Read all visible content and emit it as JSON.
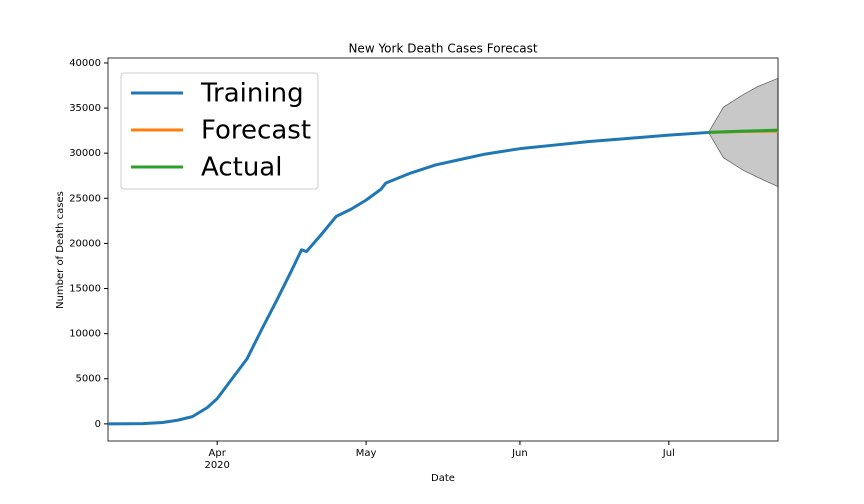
{
  "chart_data": {
    "type": "line",
    "title": "New York Death Cases Forecast",
    "xlabel": "Date",
    "ylabel": "Number of Death cases",
    "xlim": [
      "2020-03-10",
      "2020-07-23"
    ],
    "ylim": [
      -1900,
      40550
    ],
    "yticks": [
      0,
      5000,
      10000,
      15000,
      20000,
      25000,
      30000,
      35000,
      40000
    ],
    "xticks": [
      {
        "value": "2020-04-01",
        "label": "Apr",
        "sublabel": "2020"
      },
      {
        "value": "2020-05-01",
        "label": "May"
      },
      {
        "value": "2020-06-01",
        "label": "Jun"
      },
      {
        "value": "2020-07-01",
        "label": "Jul"
      }
    ],
    "grid": false,
    "legend": "upper left",
    "series": [
      {
        "name": "Training",
        "color": "#1f77b4",
        "x": [
          "2020-03-10",
          "2020-03-17",
          "2020-03-21",
          "2020-03-24",
          "2020-03-27",
          "2020-03-30",
          "2020-04-01",
          "2020-04-04",
          "2020-04-07",
          "2020-04-10",
          "2020-04-13",
          "2020-04-16",
          "2020-04-18",
          "2020-04-19",
          "2020-04-22",
          "2020-04-25",
          "2020-04-28",
          "2020-05-01",
          "2020-05-04",
          "2020-05-05",
          "2020-05-10",
          "2020-05-15",
          "2020-05-20",
          "2020-05-25",
          "2020-06-01",
          "2020-06-08",
          "2020-06-15",
          "2020-06-22",
          "2020-07-01",
          "2020-07-09"
        ],
        "values": [
          0,
          30,
          150,
          400,
          800,
          1800,
          2800,
          5000,
          7200,
          10500,
          13700,
          17000,
          19300,
          19100,
          21000,
          23000,
          23800,
          24800,
          26000,
          26700,
          27800,
          28700,
          29300,
          29900,
          30500,
          30900,
          31300,
          31600,
          32000,
          32300
        ]
      },
      {
        "name": "Forecast",
        "color": "#ff7f0e",
        "x": [
          "2020-07-09",
          "2020-07-16",
          "2020-07-23"
        ],
        "values": [
          32300,
          32400,
          32450
        ]
      },
      {
        "name": "Actual",
        "color": "#2ca02c",
        "x": [
          "2020-07-09",
          "2020-07-16",
          "2020-07-23"
        ],
        "values": [
          32300,
          32450,
          32550
        ]
      }
    ],
    "band": {
      "color": "#c8c8c8",
      "x": [
        "2020-07-09",
        "2020-07-12",
        "2020-07-16",
        "2020-07-19",
        "2020-07-23"
      ],
      "lower": [
        32300,
        29500,
        28100,
        27300,
        26300
      ],
      "upper": [
        32300,
        35100,
        36500,
        37400,
        38300
      ]
    }
  }
}
